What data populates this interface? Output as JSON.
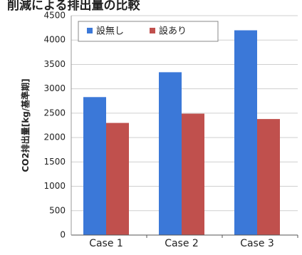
{
  "title": "削減による排出量の比較",
  "chart_data": {
    "type": "bar",
    "categories": [
      "Case 1",
      "Case 2",
      "Case 3"
    ],
    "series": [
      {
        "name": "設無し",
        "values": [
          2830,
          3340,
          4200
        ],
        "color": "#3B78D8"
      },
      {
        "name": "設あり",
        "values": [
          2300,
          2490,
          2380
        ],
        "color": "#C0504D"
      }
    ],
    "ylabel": "CO2排出量[kg/基準期]",
    "xlabel": "",
    "ylim": [
      0,
      4500
    ],
    "yticks": [
      0,
      500,
      1000,
      1500,
      2000,
      2500,
      3000,
      3500,
      4000,
      4500
    ],
    "grid": true,
    "legend_position": "top-left"
  }
}
